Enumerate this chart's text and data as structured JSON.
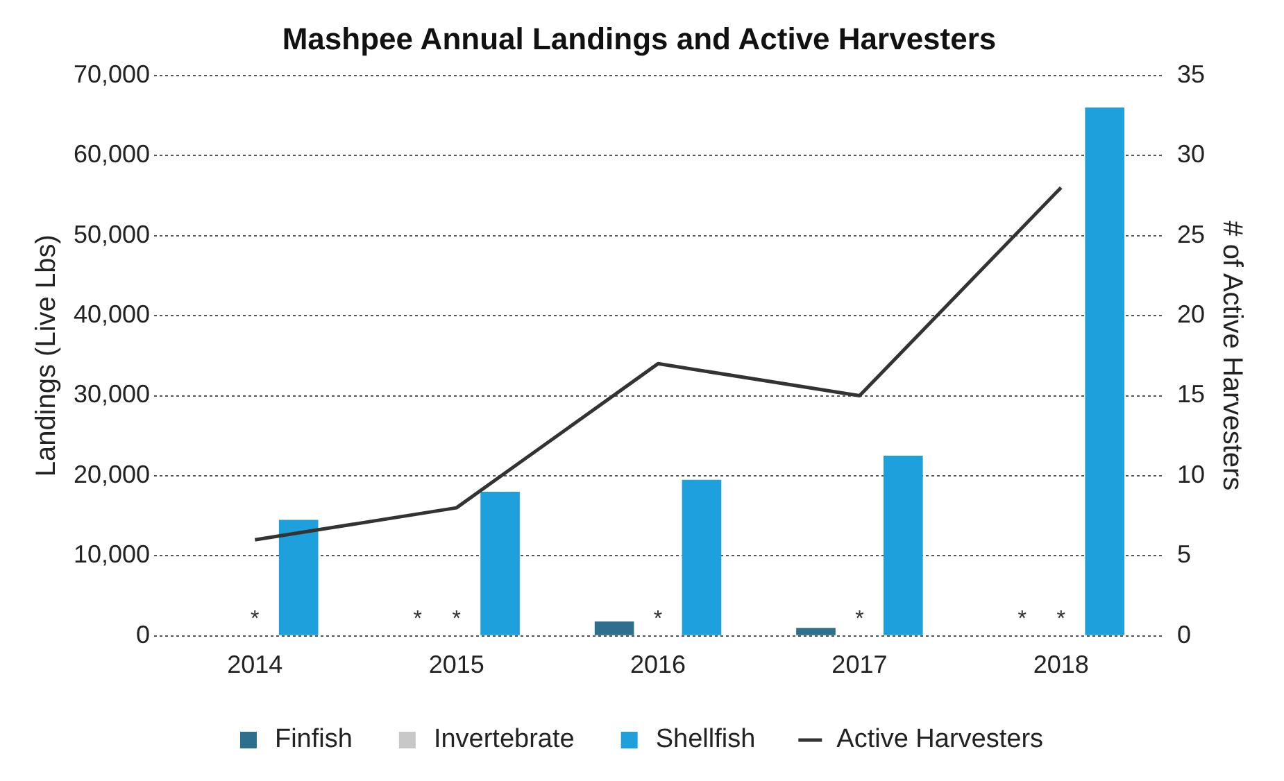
{
  "chart_data": {
    "type": "bar",
    "title": "Mashpee Annual Landings and Active Harvesters",
    "categories": [
      "2014",
      "2015",
      "2016",
      "2017",
      "2018"
    ],
    "series": [
      {
        "name": "Finfish",
        "color": "#2e6f8e",
        "values": [
          0,
          null,
          1800,
          1000,
          null
        ]
      },
      {
        "name": "Invertebrate",
        "color": "#c8c8c8",
        "values": [
          null,
          null,
          null,
          null,
          null
        ]
      },
      {
        "name": "Shellfish",
        "color": "#1ea0dc",
        "values": [
          14500,
          18000,
          19500,
          22500,
          66000
        ]
      },
      {
        "name": "Active Harvesters",
        "type": "line",
        "axis": "y2",
        "color": "#333333",
        "values": [
          6,
          8,
          17,
          15,
          28
        ]
      }
    ],
    "ylabel": "Landings (Live Lbs)",
    "y2label": "# of Active Harvesters",
    "ylim": [
      0,
      70000
    ],
    "yticks": [
      0,
      {
        "value": 10000,
        "label": "10,000"
      },
      {
        "value": 20000,
        "label": "20,000"
      },
      {
        "value": 30000,
        "label": "30,000"
      },
      {
        "value": 40000,
        "label": "40,000"
      },
      {
        "value": 50000,
        "label": "50,000"
      },
      {
        "value": 60000,
        "label": "60,000"
      },
      {
        "value": 70000,
        "label": "70,000"
      }
    ],
    "y2lim": [
      0,
      35
    ],
    "y2ticks": [
      0,
      5,
      10,
      15,
      20,
      25,
      30,
      35
    ],
    "annotations": [
      "*",
      "*",
      "*",
      "*",
      "*",
      "*",
      "*"
    ],
    "grid": "y",
    "legend": "bottom",
    "line_style": "solid"
  }
}
